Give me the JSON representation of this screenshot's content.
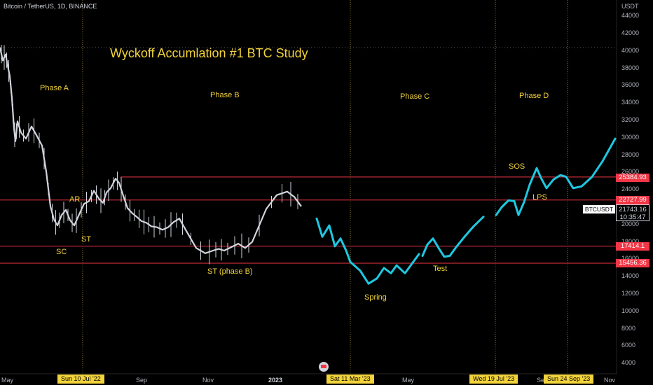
{
  "header": {
    "symbol_title": "Bitcoin / TetherUS, 1D, BINANCE",
    "axis_unit": "USDT"
  },
  "colors": {
    "background": "#000000",
    "candles": "#d1d4dc",
    "projection": "#1ec8e1",
    "level_lines": "#f23645",
    "annotation": "#f2d33b",
    "grid": "#3a3a3a"
  },
  "chart_data": {
    "type": "line",
    "title": "Wyckoff Accumlation #1 BTC Study",
    "ylim": [
      3000,
      45000
    ],
    "y_ticks": [
      44000,
      42000,
      40000,
      38000,
      36000,
      34000,
      32000,
      30000,
      28000,
      26000,
      24000,
      22000,
      20000,
      18000,
      16000,
      14000,
      12000,
      10000,
      8000,
      6000,
      4000
    ],
    "x_labels": [
      "May",
      "Sep",
      "Nov",
      "2023",
      "May",
      "Se",
      "Nov"
    ],
    "date_markers": [
      "Sun 10 Jul '22",
      "Sat 11 Mar '23",
      "Wed 19 Jul '23",
      "Sun 24 Sep '23"
    ],
    "levels": [
      25384.93,
      22727.99,
      17414.1,
      15456.36
    ],
    "current_price": {
      "symbol": "BTCUSDT",
      "price": "21743.16",
      "countdown": "10:35:47"
    },
    "phases": [
      "Phase A",
      "Phase B",
      "Phase C",
      "Phase D"
    ],
    "events": [
      "AR",
      "ST",
      "SC",
      "ST (phase B)",
      "Spring",
      "Test",
      "SOS",
      "LPS"
    ],
    "series": [
      {
        "values": [
          40300,
          38800,
          39500,
          38200,
          37000,
          34500,
          31000,
          29500,
          31800,
          30500,
          29800,
          31200,
          30200,
          29000,
          26000,
          22000,
          20500,
          19800,
          21000,
          21600,
          20400,
          19800,
          20900,
          22300,
          22600,
          23800,
          22900,
          22400,
          23600,
          24100,
          25200,
          24700,
          23200,
          21800,
          21200,
          20800,
          20300,
          20100,
          19700,
          19600,
          19300,
          19600,
          20200,
          20600,
          19300,
          17200,
          16600,
          16900,
          17100,
          16900,
          17300,
          17700,
          17200,
          17900,
          21700,
          23300,
          23700,
          23100,
          22000
        ]
      },
      {
        "values": [
          20600,
          18900,
          17600,
          15800,
          14000,
          12600,
          13600,
          15000,
          13900,
          16500,
          17600,
          16200,
          18600,
          20200,
          21100
        ]
      },
      {
        "values": [
          20800,
          22400,
          22800,
          21000,
          23700,
          26300,
          24200,
          25300,
          24100,
          24800,
          27100,
          29800
        ]
      }
    ]
  }
}
